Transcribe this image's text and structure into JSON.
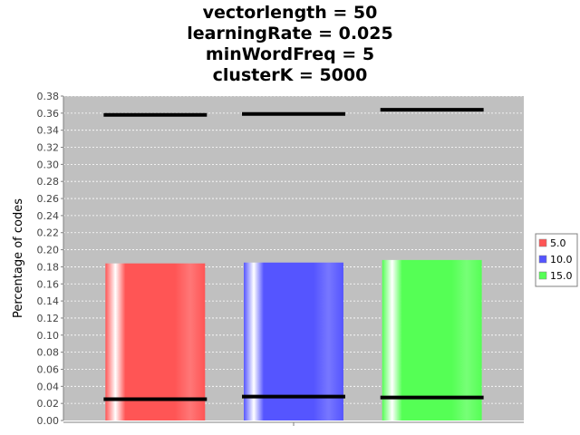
{
  "chart_data": {
    "type": "bar",
    "title_lines": [
      "vectorlength = 50",
      "learningRate = 0.025",
      "minWordFreq = 5",
      "clusterK = 5000"
    ],
    "xlabel": "",
    "ylabel": "Percentage of codes",
    "ylim": [
      0,
      0.38
    ],
    "ytick_step": 0.02,
    "grid": true,
    "legend_position": "right",
    "series": [
      {
        "name": "5.0",
        "color": "#ff5555",
        "value": 0.184,
        "upper": 0.358,
        "lower": 0.025
      },
      {
        "name": "10.0",
        "color": "#5555ff",
        "value": 0.185,
        "upper": 0.359,
        "lower": 0.028
      },
      {
        "name": "15.0",
        "color": "#55ff55",
        "value": 0.188,
        "upper": 0.364,
        "lower": 0.027
      }
    ]
  }
}
